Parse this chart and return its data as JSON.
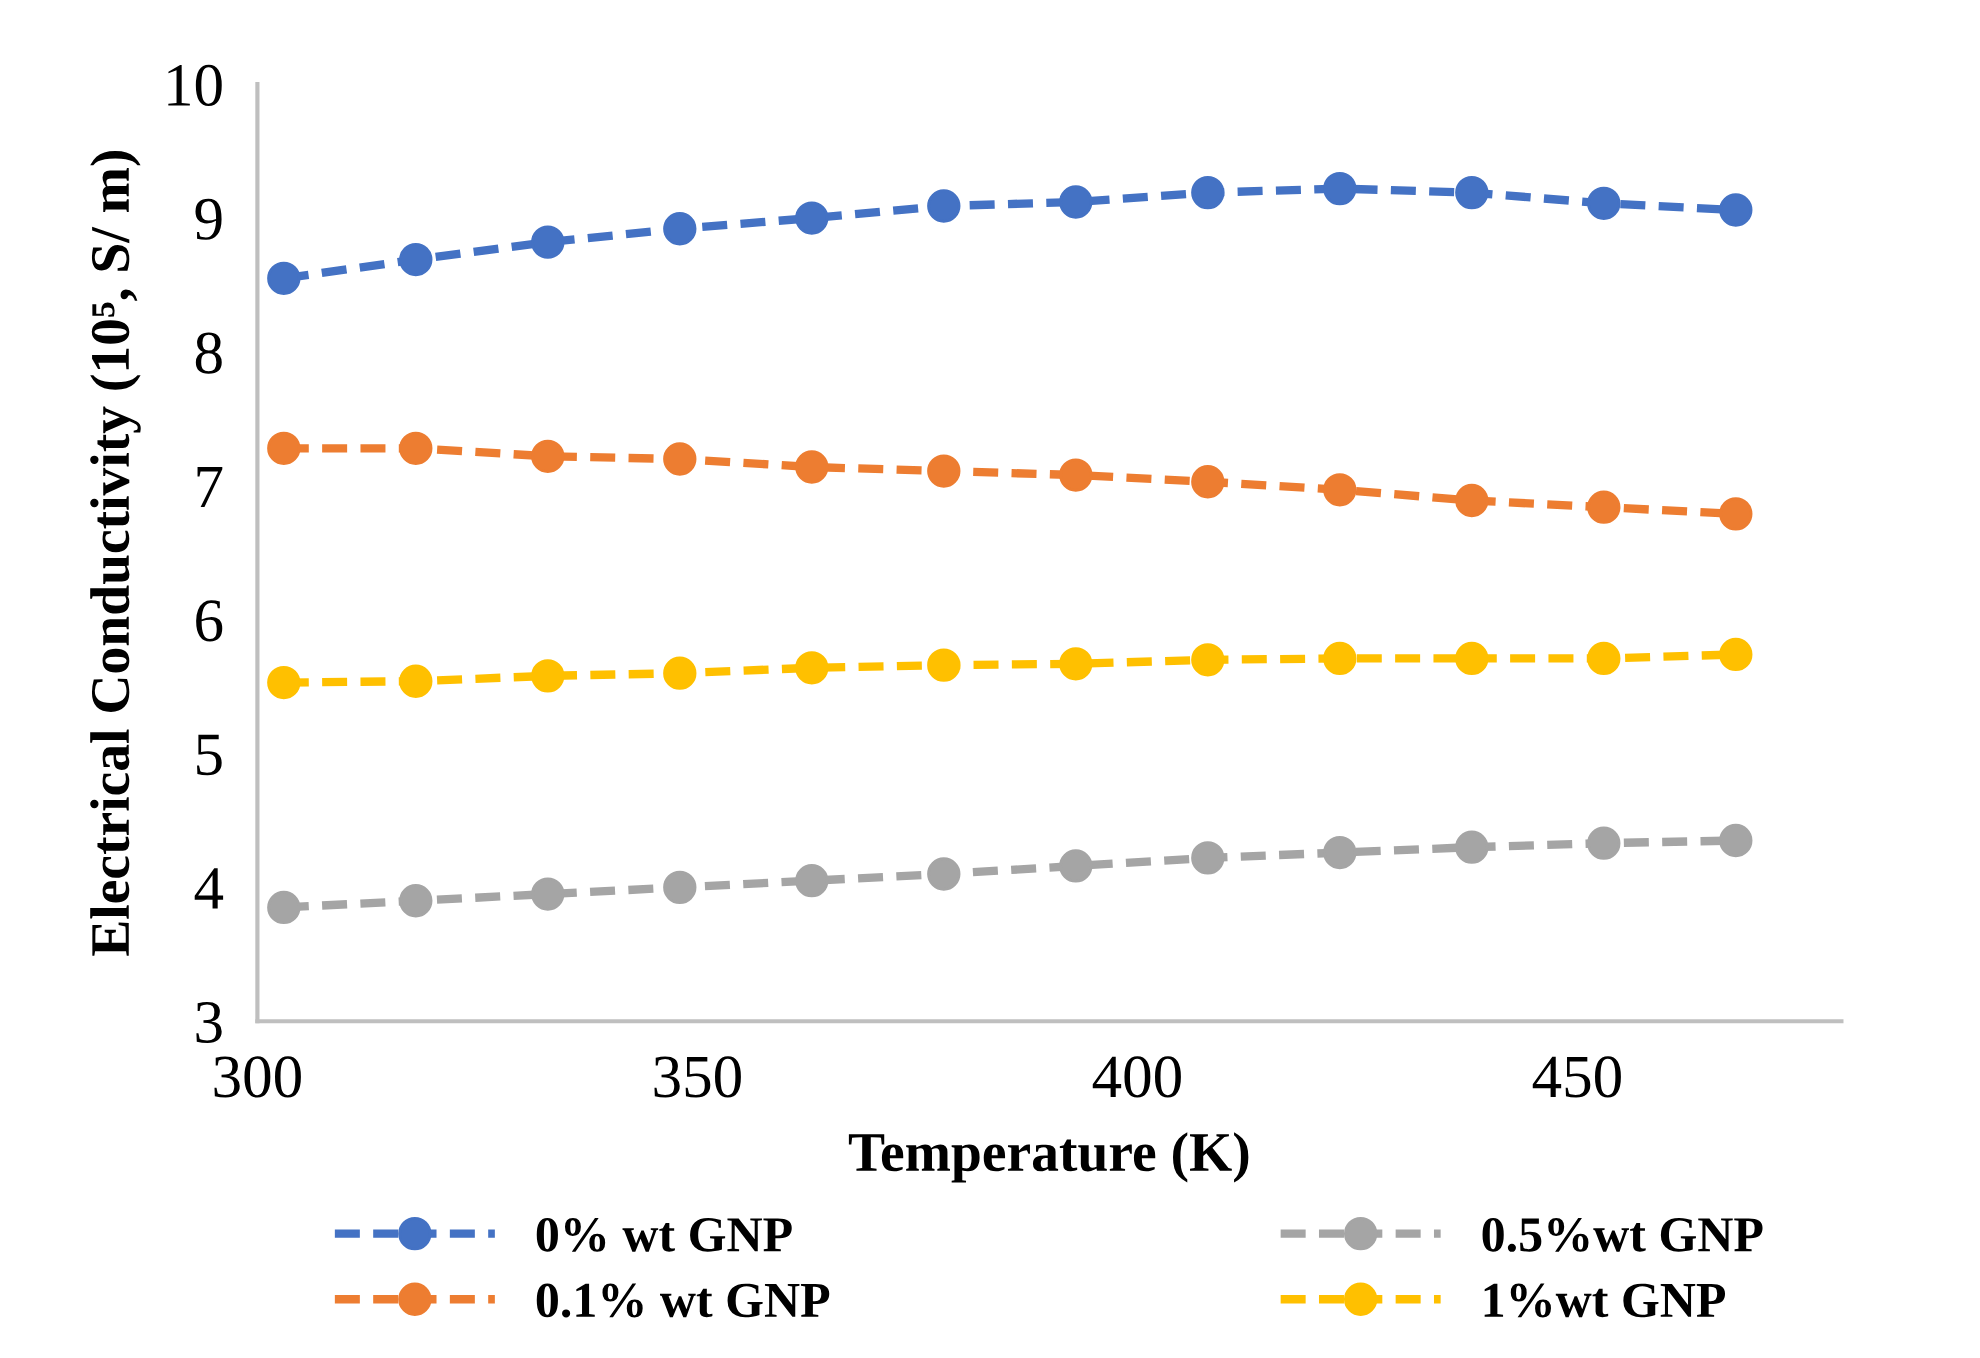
{
  "chart_data": {
    "type": "line",
    "xlabel": "Temperature (K)",
    "ylabel": "Electrical Conductivity (10⁵, S/ m)",
    "x": [
      303,
      318,
      333,
      348,
      363,
      378,
      393,
      408,
      423,
      438,
      453,
      468
    ],
    "xlim": [
      300,
      480
    ],
    "xticks": [
      300,
      350,
      400,
      450
    ],
    "ylim": [
      3,
      10
    ],
    "yticks": [
      3,
      4,
      5,
      6,
      7,
      8,
      9,
      10
    ],
    "grid": false,
    "legend": "bottom",
    "marker": "circle",
    "line_style": "dashed",
    "series": [
      {
        "name": "0% wt GNP",
        "color": "#4472c4",
        "values": [
          8.55,
          8.69,
          8.82,
          8.92,
          9.0,
          9.09,
          9.12,
          9.19,
          9.22,
          9.19,
          9.11,
          9.06
        ]
      },
      {
        "name": "0.1% wt GNP",
        "color": "#ed7d31",
        "values": [
          7.28,
          7.28,
          7.22,
          7.2,
          7.14,
          7.11,
          7.08,
          7.03,
          6.97,
          6.89,
          6.84,
          6.79
        ]
      },
      {
        "name": "0.5%wt GNP",
        "color": "#a5a5a5",
        "values": [
          3.85,
          3.9,
          3.95,
          4.0,
          4.05,
          4.1,
          4.16,
          4.22,
          4.26,
          4.3,
          4.33,
          4.35
        ]
      },
      {
        "name": "1%wt GNP",
        "color": "#ffc000",
        "values": [
          5.53,
          5.54,
          5.58,
          5.6,
          5.64,
          5.66,
          5.67,
          5.7,
          5.71,
          5.71,
          5.71,
          5.74
        ]
      }
    ]
  }
}
